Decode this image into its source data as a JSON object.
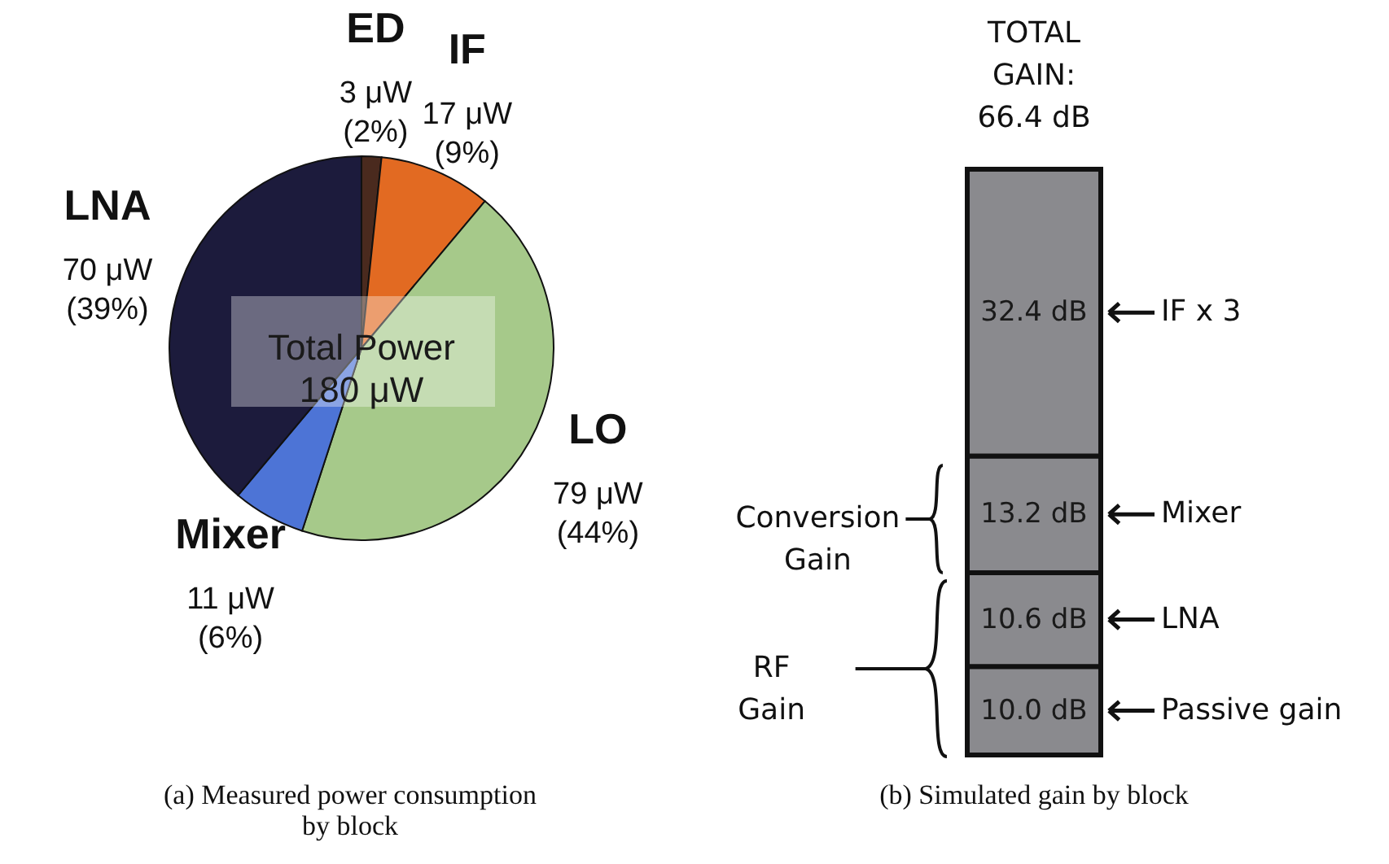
{
  "chart_data": [
    {
      "type": "pie",
      "title": "(a) Measured power consumption\nby block",
      "categories": [
        "ED",
        "IF",
        "LO",
        "Mixer",
        "LNA"
      ],
      "values": [
        3,
        17,
        79,
        11,
        70
      ],
      "colors": [
        "#4a2a1e",
        "#e26a22",
        "#a6c98a",
        "#4d74d6",
        "#1c1b3c"
      ],
      "value_labels": [
        "3 μW\n(2%)",
        "17 μW\n(9%)",
        "79 μW\n(44%)",
        "11 μW\n(6%)",
        "70 μW\n(39%)"
      ],
      "annotations": [
        "Total Power\n180 μW"
      ]
    },
    {
      "type": "bar",
      "stacked": true,
      "legend": "right",
      "title": "(b) Simulated gain by block",
      "categories": [
        null
      ],
      "series": [
        {
          "name": "Passive gain",
          "color": "#8a8a8e",
          "values": [
            10.0
          ],
          "value_labels": [
            "10.0 dB"
          ]
        },
        {
          "name": "LNA",
          "color": "#8a8a8e",
          "values": [
            10.6
          ],
          "value_labels": [
            "10.6 dB"
          ]
        },
        {
          "name": "Mixer",
          "color": "#8a8a8e",
          "values": [
            13.2
          ],
          "value_labels": [
            "13.2 dB"
          ]
        },
        {
          "name": "IF x 3",
          "color": "#8a8a8e",
          "values": [
            32.4
          ],
          "value_labels": [
            "32.4 dB"
          ]
        }
      ],
      "totals": [
        "TOTAL\nGAIN:\n66.4 dB"
      ],
      "annotations": [
        "Conversion Gain",
        "RF Gain"
      ]
    }
  ]
}
